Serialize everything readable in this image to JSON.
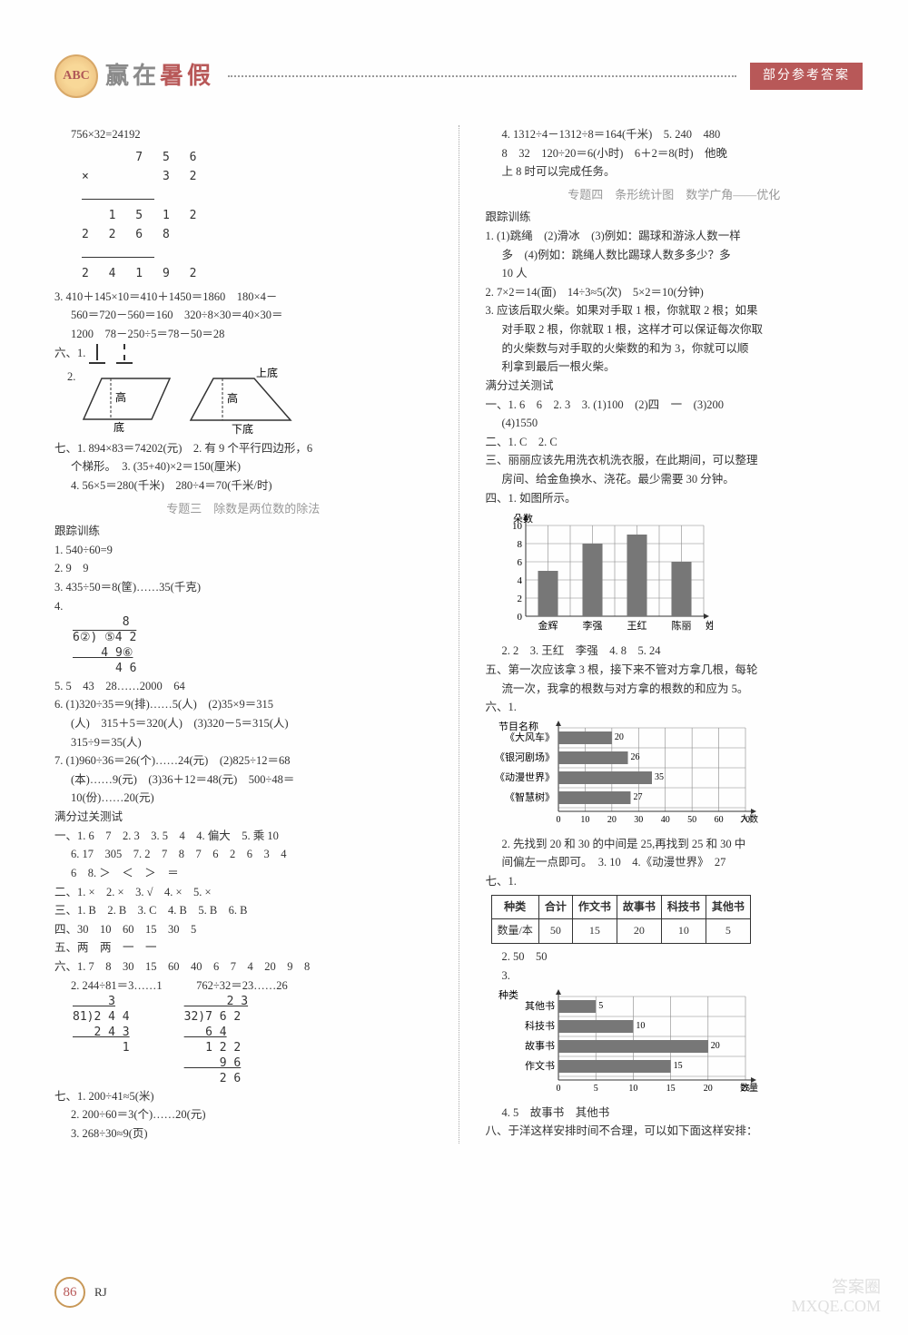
{
  "header": {
    "logo": "ABC",
    "title_pre": "赢在",
    "title_accent": "暑假",
    "badge": "部分参考答案"
  },
  "left": {
    "l1": "756×32=24192",
    "mult": {
      "a": "    7 5 6",
      "b": "×     3 2",
      "r1": "  1 5 1 2",
      "r2": "2 2 6 8",
      "r3": "2 4 1 9 2"
    },
    "l3": "3. 410＋145×10＝410＋1450＝1860　180×4－",
    "l3b": "560＝720－560＝160　320÷8×30＝40×30＝",
    "l3c": "1200　78－250÷5＝78－50＝28",
    "six_label": "六、1.",
    "shapes": {
      "para_labels": {
        "height": "高",
        "base": "底"
      },
      "trap_labels": {
        "top": "上底",
        "height": "高",
        "base": "下底"
      }
    },
    "seven": "七、1. 894×83＝74202(元)　2. 有 9 个平行四边形，6",
    "seven_b": "个梯形。　3. (35+40)×2＝150(厘米)",
    "seven_c": "4. 56×5＝280(千米)　280÷4＝70(千米/时)",
    "topic3": "专题三　除数是两位数的除法",
    "track": "跟踪训练",
    "t1": "1. 540÷60=9",
    "t2": "2. 9　9",
    "t3": "3. 435÷50＝8(筐)……35(千克)",
    "t4": "4.",
    "div4": {
      "q": "       8",
      "d": "6②) ⑤4 2",
      "a": "    4 9⑥",
      "b": "      4 6"
    },
    "t5": "5. 5　43　28……2000　64",
    "t6": "6. (1)320÷35＝9(排)……5(人)　(2)35×9＝315",
    "t6b": "(人)　315＋5＝320(人)　(3)320－5＝315(人)",
    "t6c": "315÷9＝35(人)",
    "t7": "7. (1)960÷36＝26(个)……24(元)　(2)825÷12＝68",
    "t7b": "(本)……9(元)　(3)36＋12＝48(元)　500÷48＝",
    "t7c": "10(份)……20(元)",
    "pass": "满分过关测试",
    "p1": "一、1. 6　7　2. 3　3. 5　4　4. 偏大　5. 乘 10",
    "p1b": "6. 17　305　7. 2　7　8　7　6　2　6　3　4",
    "p1c": "6　8. ＞　＜　＞　＝",
    "p2": "二、1. ×　2. ×　3. √　4. ×　5. ×",
    "p3": "三、1. B　2. B　3. C　4. B　5. B　6. B",
    "p4": "四、30　10　60　15　30　5",
    "p5": "五、两　两　一　一",
    "p6": "六、1. 7　8　30　15　60　40　6　7　4　20　9　8",
    "p6b": "2. 244÷81＝3……1　　　762÷32＝23……26",
    "divL": {
      "q": "     3",
      "d": "81)2 4 4",
      "a": "   2 4 3",
      "b": "       1"
    },
    "divR": {
      "q": "      2 3",
      "d": "32)7 6 2",
      "a": "   6 4",
      "b": "   1 2 2",
      "c": "     9 6",
      "e": "     2 6"
    },
    "p7": "七、1. 200÷41≈5(米)",
    "p7b": "2. 200÷60＝3(个)……20(元)",
    "p7c": "3. 268÷30≈9(页)"
  },
  "right": {
    "r1": "4. 1312÷4－1312÷8＝164(千米)　5. 240　480",
    "r1b": "8　32　120÷20＝6(小时)　6＋2＝8(时)　他晚",
    "r1c": "上 8 时可以完成任务。",
    "topic4": "专题四　条形统计图　数学广角——优化",
    "track": "跟踪训练",
    "t1": "1. (1)跳绳　(2)滑冰　(3)例如：踢球和游泳人数一样",
    "t1b": "多　(4)例如：跳绳人数比踢球人数多多少？多",
    "t1c": "10 人",
    "t2": "2. 7×2＝14(面)　14÷3≈5(次)　5×2＝10(分钟)",
    "t3": "3. 应该后取火柴。如果对手取 1 根，你就取 2 根；如果",
    "t3b": "对手取 2 根，你就取 1 根，这样才可以保证每次你取",
    "t3c": "的火柴数与对手取的火柴数的和为 3，你就可以顺",
    "t3d": "利拿到最后一根火柴。",
    "pass": "满分过关测试",
    "p1": "一、1. 6　6　2. 3　3. (1)100　(2)四　一　(3)200",
    "p1b": "(4)1550",
    "p2": "二、1. C　2. C",
    "p3": "三、丽丽应该先用洗衣机洗衣服，在此期间，可以整理",
    "p3b": "房间、给金鱼换水、浇花。最少需要 30 分钟。",
    "p4": "四、1. 如图所示。",
    "chart1": {
      "ylabel": "朵数",
      "xlabel": "姓名",
      "yticks": [
        0,
        2,
        4,
        6,
        8,
        10
      ],
      "categories": [
        "金辉",
        "李强",
        "王红",
        "陈丽"
      ],
      "values": [
        5,
        8,
        9,
        6
      ],
      "bar_color": "#777",
      "grid_color": "#888"
    },
    "p4b": "2. 2　3. 王红　李强　4. 8　5. 24",
    "p5": "五、第一次应该拿 3 根，接下来不管对方拿几根，每轮",
    "p5b": "流一次，我拿的根数与对方拿的根数的和应为 5。",
    "p6": "六、1.",
    "chart2": {
      "ylabel": "节目名称",
      "xlabel": "人数",
      "xticks": [
        0,
        10,
        20,
        30,
        40,
        50,
        60,
        70
      ],
      "categories": [
        "《大风车》",
        "《银河剧场》",
        "《动漫世界》",
        "《智慧树》"
      ],
      "values": [
        20,
        26,
        35,
        27
      ],
      "bar_color": "#777",
      "grid_color": "#888"
    },
    "p6b": "2. 先找到 20 和 30 的中间是 25,再找到 25 和 30 中",
    "p6c": "间偏左一点即可。　3. 10　4.《动漫世界》　27",
    "p7": "七、1.",
    "table": {
      "headers": [
        "种类",
        "合计",
        "作文书",
        "故事书",
        "科技书",
        "其他书"
      ],
      "row_label": "数量/本",
      "row": [
        50,
        15,
        20,
        10,
        5
      ]
    },
    "p7b": "2. 50　50",
    "p7c": "3.",
    "chart3": {
      "ylabel": "种类",
      "xlabel": "数量/本",
      "xticks": [
        0,
        5,
        10,
        15,
        20,
        25
      ],
      "categories": [
        "其他书",
        "科技书",
        "故事书",
        "作文书"
      ],
      "values": [
        5,
        10,
        20,
        15
      ],
      "bar_color": "#777",
      "grid_color": "#888"
    },
    "p7d": "4. 5　故事书　其他书",
    "p8": "八、于洋这样安排时间不合理，可以如下面这样安排："
  },
  "footer": {
    "page": "86",
    "code": "RJ"
  },
  "watermark": {
    "l1": "答案圈",
    "l2": "MXQE.COM"
  }
}
